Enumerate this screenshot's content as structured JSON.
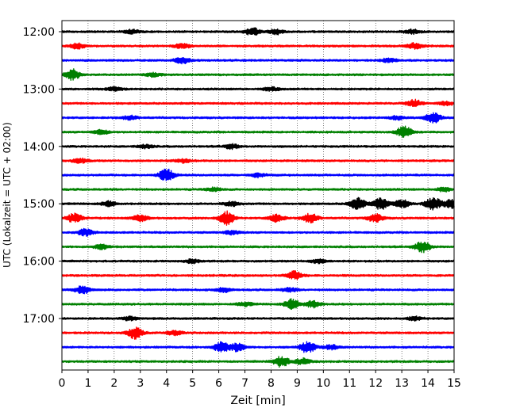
{
  "chart_data": {
    "type": "line",
    "title": "",
    "xlabel": "Zeit  [min]",
    "ylabel": "UTC (Lokalzeit = UTC + 02:00)",
    "xlim": [
      0,
      15
    ],
    "x_ticks": [
      0,
      1,
      2,
      3,
      4,
      5,
      6,
      7,
      8,
      9,
      10,
      11,
      12,
      13,
      14,
      15
    ],
    "y_ticks": [
      "12:00",
      "13:00",
      "14:00",
      "15:00",
      "16:00",
      "17:00"
    ],
    "trace_interval_min": 15,
    "grid": "vertical dotted at each minute",
    "colors_cycle": [
      "#000000",
      "#ff0000",
      "#0000ff",
      "#008000"
    ],
    "series": [
      {
        "start": "12:00",
        "color": "#000000",
        "bursts": [
          [
            2.7,
            0.5
          ],
          [
            7.3,
            1.0
          ],
          [
            8.2,
            0.7
          ],
          [
            13.4,
            0.6
          ]
        ]
      },
      {
        "start": "12:15",
        "color": "#ff0000",
        "bursts": [
          [
            0.6,
            0.7
          ],
          [
            4.6,
            0.6
          ],
          [
            13.5,
            0.8
          ]
        ]
      },
      {
        "start": "12:30",
        "color": "#0000ff",
        "bursts": [
          [
            4.6,
            0.8
          ],
          [
            12.5,
            0.5
          ]
        ]
      },
      {
        "start": "12:45",
        "color": "#008000",
        "bursts": [
          [
            0.4,
            1.4
          ],
          [
            3.5,
            0.5
          ]
        ]
      },
      {
        "start": "13:00",
        "color": "#000000",
        "bursts": [
          [
            2.0,
            0.5
          ],
          [
            8.0,
            0.5
          ]
        ]
      },
      {
        "start": "13:15",
        "color": "#ff0000",
        "bursts": [
          [
            13.5,
            0.9
          ],
          [
            14.7,
            0.5
          ]
        ]
      },
      {
        "start": "13:30",
        "color": "#0000ff",
        "bursts": [
          [
            2.6,
            0.5
          ],
          [
            12.8,
            0.5
          ],
          [
            14.2,
            1.4
          ]
        ]
      },
      {
        "start": "13:45",
        "color": "#008000",
        "bursts": [
          [
            1.5,
            0.6
          ],
          [
            13.1,
            1.6
          ]
        ]
      },
      {
        "start": "14:00",
        "color": "#000000",
        "bursts": [
          [
            3.2,
            0.5
          ],
          [
            6.5,
            0.6
          ]
        ]
      },
      {
        "start": "14:15",
        "color": "#ff0000",
        "bursts": [
          [
            0.7,
            0.6
          ],
          [
            4.6,
            0.5
          ]
        ]
      },
      {
        "start": "14:30",
        "color": "#0000ff",
        "bursts": [
          [
            4.0,
            1.6
          ],
          [
            7.5,
            0.5
          ]
        ]
      },
      {
        "start": "14:45",
        "color": "#008000",
        "bursts": [
          [
            5.8,
            0.5
          ],
          [
            14.6,
            0.5
          ]
        ]
      },
      {
        "start": "15:00",
        "color": "#000000",
        "bursts": [
          [
            1.8,
            0.7
          ],
          [
            6.5,
            0.6
          ],
          [
            11.3,
            1.6
          ],
          [
            12.2,
            1.6
          ],
          [
            13.0,
            1.0
          ],
          [
            14.2,
            1.7
          ],
          [
            14.9,
            1.2
          ]
        ]
      },
      {
        "start": "15:15",
        "color": "#ff0000",
        "bursts": [
          [
            0.5,
            1.3
          ],
          [
            3.0,
            0.8
          ],
          [
            6.3,
            1.8
          ],
          [
            8.2,
            1.0
          ],
          [
            9.5,
            1.2
          ],
          [
            12.0,
            1.1
          ]
        ]
      },
      {
        "start": "15:30",
        "color": "#0000ff",
        "bursts": [
          [
            0.9,
            0.9
          ],
          [
            6.5,
            0.5
          ]
        ]
      },
      {
        "start": "15:45",
        "color": "#008000",
        "bursts": [
          [
            1.5,
            0.6
          ],
          [
            13.8,
            1.5
          ]
        ]
      },
      {
        "start": "16:00",
        "color": "#000000",
        "bursts": [
          [
            5.0,
            0.5
          ],
          [
            9.8,
            0.5
          ]
        ]
      },
      {
        "start": "16:15",
        "color": "#ff0000",
        "bursts": [
          [
            8.9,
            1.1
          ]
        ]
      },
      {
        "start": "16:30",
        "color": "#0000ff",
        "bursts": [
          [
            0.8,
            1.0
          ],
          [
            6.2,
            0.6
          ],
          [
            8.7,
            0.5
          ]
        ]
      },
      {
        "start": "16:45",
        "color": "#008000",
        "bursts": [
          [
            8.8,
            1.4
          ],
          [
            9.6,
            0.9
          ],
          [
            7.0,
            0.5
          ]
        ]
      },
      {
        "start": "17:00",
        "color": "#000000",
        "bursts": [
          [
            2.6,
            0.5
          ],
          [
            13.5,
            0.5
          ]
        ]
      },
      {
        "start": "17:15",
        "color": "#ff0000",
        "bursts": [
          [
            2.8,
            1.5
          ],
          [
            4.3,
            0.6
          ]
        ]
      },
      {
        "start": "17:30",
        "color": "#0000ff",
        "bursts": [
          [
            6.1,
            1.3
          ],
          [
            6.7,
            1.0
          ],
          [
            9.4,
            1.5
          ],
          [
            10.3,
            0.6
          ]
        ]
      },
      {
        "start": "17:45",
        "color": "#008000",
        "bursts": [
          [
            8.4,
            1.4
          ],
          [
            9.2,
            0.8
          ]
        ]
      }
    ]
  }
}
